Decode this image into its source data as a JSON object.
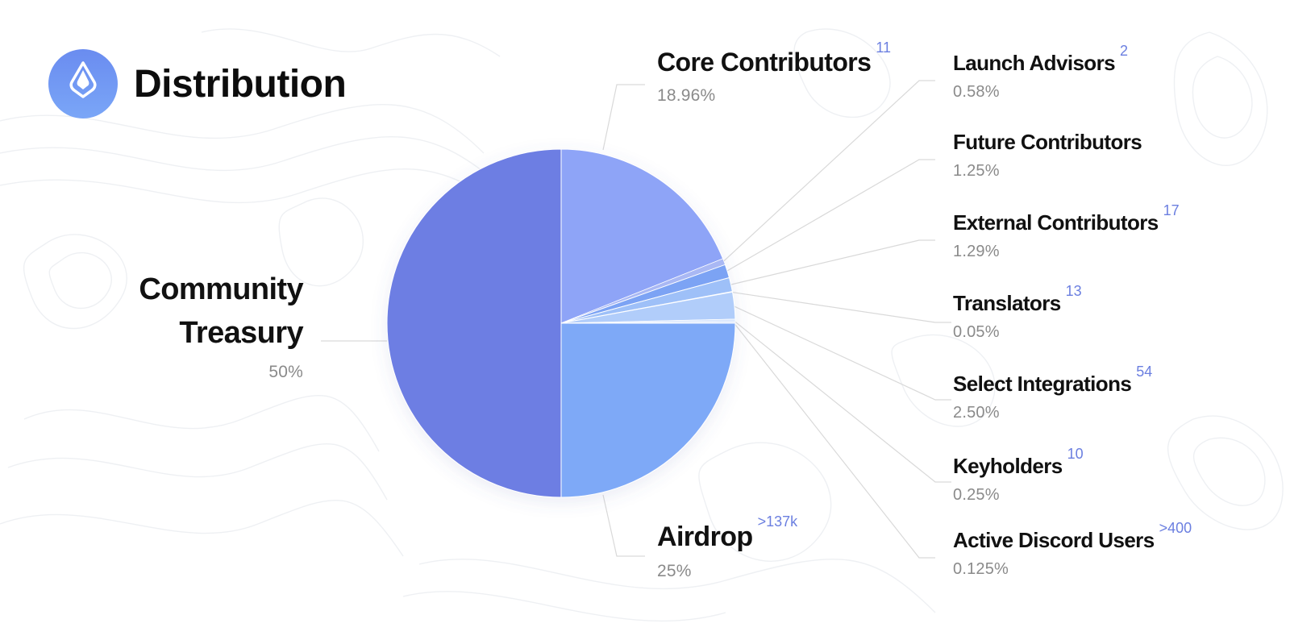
{
  "header": {
    "title": "Distribution"
  },
  "colors": {
    "logo_gradient_top": "#6a8cf0",
    "logo_gradient_bottom": "#7aa6f7",
    "count_text": "#6b7fe0",
    "percent_text": "#8a8a8a",
    "connector_line": "#d9d9d9"
  },
  "chart_data": {
    "type": "pie",
    "slices": [
      {
        "key": "core_contributors",
        "name": "Core Contributors",
        "count": "11",
        "pct_label": "18.96%",
        "value": 18.96,
        "color": "#8ea4f7"
      },
      {
        "key": "launch_advisors",
        "name": "Launch Advisors",
        "count": "2",
        "pct_label": "0.58%",
        "value": 0.58,
        "color": "#a9b8f4"
      },
      {
        "key": "future_contributors",
        "name": "Future Contributors",
        "count": "",
        "pct_label": "1.25%",
        "value": 1.25,
        "color": "#7ba3f4"
      },
      {
        "key": "external_contributors",
        "name": "External Contributors",
        "count": "17",
        "pct_label": "1.29%",
        "value": 1.29,
        "color": "#9ec0f8"
      },
      {
        "key": "translators",
        "name": "Translators",
        "count": "13",
        "pct_label": "0.05%",
        "value": 0.05,
        "color": "#c2d6fb"
      },
      {
        "key": "select_integrations",
        "name": "Select Integrations",
        "count": "54",
        "pct_label": "2.50%",
        "value": 2.5,
        "color": "#b1cdfa"
      },
      {
        "key": "keyholders",
        "name": "Keyholders",
        "count": "10",
        "pct_label": "0.25%",
        "value": 0.25,
        "color": "#dce8fd"
      },
      {
        "key": "active_discord_users",
        "name": "Active Discord Users",
        "count": ">400",
        "pct_label": "0.125%",
        "value": 0.125,
        "color": "#ccdcfb"
      },
      {
        "key": "airdrop",
        "name": "Airdrop",
        "count": ">137k",
        "pct_label": "25%",
        "value": 25,
        "color": "#7ea9f7"
      },
      {
        "key": "community_treasury",
        "name": "Community Treasury",
        "count": "",
        "pct_label": "50%",
        "value": 50,
        "color": "#6d7ee3"
      }
    ]
  }
}
